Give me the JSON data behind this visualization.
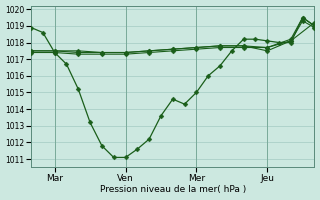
{
  "background_color": "#cce8e0",
  "grid_color": "#aacfc8",
  "line_color": "#1a5e1a",
  "xlabel": "Pression niveau de la mer( hPa )",
  "ylim": [
    1010.5,
    1020.2
  ],
  "yticks": [
    1011,
    1012,
    1013,
    1014,
    1015,
    1016,
    1017,
    1018,
    1019,
    1020
  ],
  "day_labels": [
    "Mar",
    "Ven",
    "Mer",
    "Jeu"
  ],
  "day_positions": [
    12,
    48,
    84,
    120
  ],
  "xlim": [
    0,
    144
  ],
  "series1_x": [
    0,
    6,
    12,
    18,
    24,
    30,
    36,
    42,
    48,
    54,
    60,
    66,
    72,
    78,
    84,
    90,
    96,
    102,
    108,
    114,
    120,
    126,
    132,
    138,
    144
  ],
  "series1_y": [
    1018.9,
    1018.6,
    1017.4,
    1016.7,
    1015.2,
    1013.2,
    1011.8,
    1011.1,
    1011.1,
    1011.6,
    1012.2,
    1013.6,
    1014.6,
    1014.3,
    1015.0,
    1016.0,
    1016.6,
    1017.5,
    1018.2,
    1018.2,
    1018.1,
    1018.0,
    1018.0,
    1019.5,
    1019.0
  ],
  "series2_x": [
    0,
    12,
    24,
    36,
    48,
    60,
    72,
    84,
    96,
    108,
    120,
    132,
    144
  ],
  "series2_y": [
    1017.4,
    1017.4,
    1017.3,
    1017.3,
    1017.3,
    1017.4,
    1017.5,
    1017.6,
    1017.7,
    1017.7,
    1017.7,
    1018.1,
    1019.2
  ],
  "series3_x": [
    0,
    12,
    24,
    36,
    48,
    60,
    72,
    84,
    96,
    108,
    120,
    132,
    138,
    144
  ],
  "series3_y": [
    1017.5,
    1017.5,
    1017.4,
    1017.4,
    1017.4,
    1017.5,
    1017.6,
    1017.7,
    1017.8,
    1017.8,
    1017.7,
    1018.2,
    1019.5,
    1019.0
  ],
  "series4_x": [
    0,
    12,
    24,
    36,
    48,
    60,
    72,
    84,
    96,
    108,
    120,
    132,
    138,
    144
  ],
  "series4_y": [
    1017.5,
    1017.5,
    1017.5,
    1017.4,
    1017.4,
    1017.5,
    1017.6,
    1017.7,
    1017.8,
    1017.8,
    1017.5,
    1018.1,
    1019.3,
    1018.9
  ],
  "vline_positions": [
    12,
    48,
    84,
    120
  ],
  "marker_size": 2.5,
  "lw1": 0.9,
  "lw2": 0.8
}
